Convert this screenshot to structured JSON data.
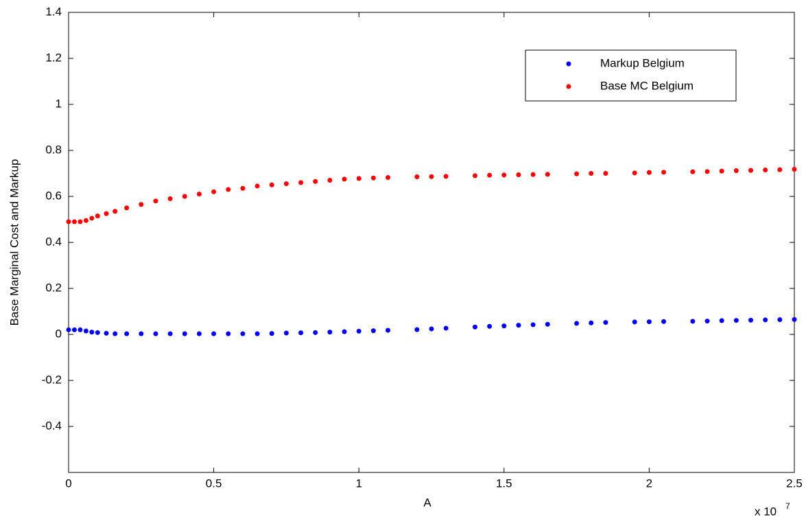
{
  "chart_data": {
    "type": "scatter",
    "xlabel": "A",
    "ylabel": "Base Marginal Cost and Markup",
    "x_scale_label": "x 10",
    "x_scale_exponent": "7",
    "xlim": [
      0,
      2.5
    ],
    "xticks": [
      0,
      0.5,
      1,
      1.5,
      2,
      2.5
    ],
    "ylim": [
      -0.6,
      1.4
    ],
    "yticks": [
      -0.4,
      -0.2,
      0,
      0.2,
      0.4,
      0.6,
      0.8,
      1,
      1.2,
      1.4
    ],
    "legend": "upper right",
    "x": [
      0,
      0.02,
      0.04,
      0.06,
      0.08,
      0.1,
      0.13,
      0.16,
      0.2,
      0.25,
      0.3,
      0.35,
      0.4,
      0.45,
      0.5,
      0.55,
      0.6,
      0.65,
      0.7,
      0.75,
      0.8,
      0.85,
      0.9,
      0.95,
      1.0,
      1.05,
      1.1,
      1.2,
      1.25,
      1.3,
      1.4,
      1.45,
      1.5,
      1.55,
      1.6,
      1.65,
      1.75,
      1.8,
      1.85,
      1.95,
      2.0,
      2.05,
      2.15,
      2.2,
      2.25,
      2.3,
      2.35,
      2.4,
      2.45,
      2.5
    ],
    "series": [
      {
        "name": "Markup Belgium",
        "color": "#0000ff",
        "values": [
          0.02,
          0.02,
          0.02,
          0.015,
          0.01,
          0.008,
          0.005,
          0.003,
          0.003,
          0.003,
          0.003,
          0.003,
          0.003,
          0.003,
          0.003,
          0.003,
          0.003,
          0.003,
          0.004,
          0.006,
          0.007,
          0.008,
          0.01,
          0.012,
          0.014,
          0.016,
          0.018,
          0.021,
          0.024,
          0.027,
          0.032,
          0.035,
          0.037,
          0.04,
          0.042,
          0.044,
          0.048,
          0.05,
          0.052,
          0.054,
          0.055,
          0.056,
          0.057,
          0.058,
          0.06,
          0.061,
          0.062,
          0.063,
          0.064,
          0.065
        ]
      },
      {
        "name": "Base MC Belgium",
        "color": "#ff0000",
        "values": [
          0.49,
          0.49,
          0.49,
          0.495,
          0.505,
          0.515,
          0.525,
          0.535,
          0.55,
          0.565,
          0.58,
          0.59,
          0.6,
          0.61,
          0.62,
          0.63,
          0.635,
          0.645,
          0.65,
          0.655,
          0.66,
          0.665,
          0.67,
          0.675,
          0.678,
          0.68,
          0.682,
          0.685,
          0.686,
          0.687,
          0.69,
          0.692,
          0.693,
          0.694,
          0.695,
          0.696,
          0.698,
          0.7,
          0.7,
          0.702,
          0.704,
          0.705,
          0.707,
          0.708,
          0.71,
          0.712,
          0.713,
          0.715,
          0.716,
          0.718
        ]
      }
    ]
  }
}
